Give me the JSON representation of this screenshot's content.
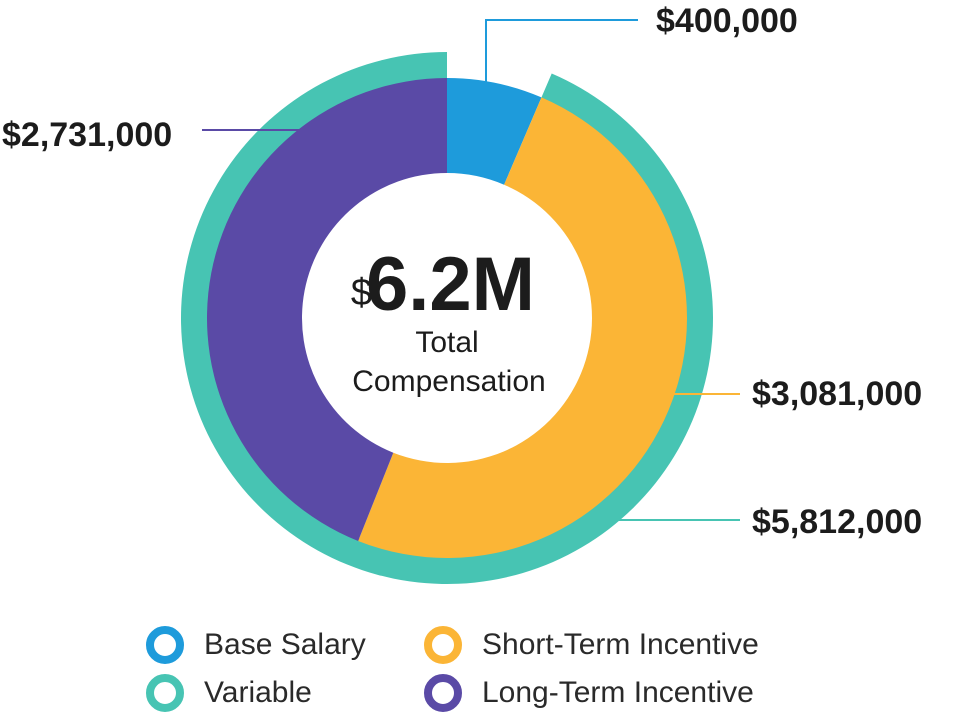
{
  "chart_data": {
    "type": "donut",
    "center": {
      "currency_symbol": "$",
      "amount": "6.2M",
      "caption_line1": "Total",
      "caption_line2": "Compensation"
    },
    "outer_ring": [
      {
        "name": "Variable",
        "value": 5812000,
        "label": "$5,812,000",
        "color": "#47C4B3"
      }
    ],
    "inner_ring": [
      {
        "name": "Base Salary",
        "value": 400000,
        "label": "$400,000",
        "color": "#1E9BDB"
      },
      {
        "name": "Short-Term Incentive",
        "value": 3081000,
        "label": "$3,081,000",
        "color": "#FBB536"
      },
      {
        "name": "Long-Term Incentive",
        "value": 2731000,
        "label": "$2,731,000",
        "color": "#5A4AA6"
      }
    ],
    "legend": [
      {
        "name": "Base Salary",
        "color": "#1E9BDB"
      },
      {
        "name": "Short-Term Incentive",
        "color": "#FBB536"
      },
      {
        "name": "Variable",
        "color": "#47C4B3"
      },
      {
        "name": "Long-Term Incentive",
        "color": "#5A4AA6"
      }
    ],
    "legend_placement": "bottom"
  }
}
